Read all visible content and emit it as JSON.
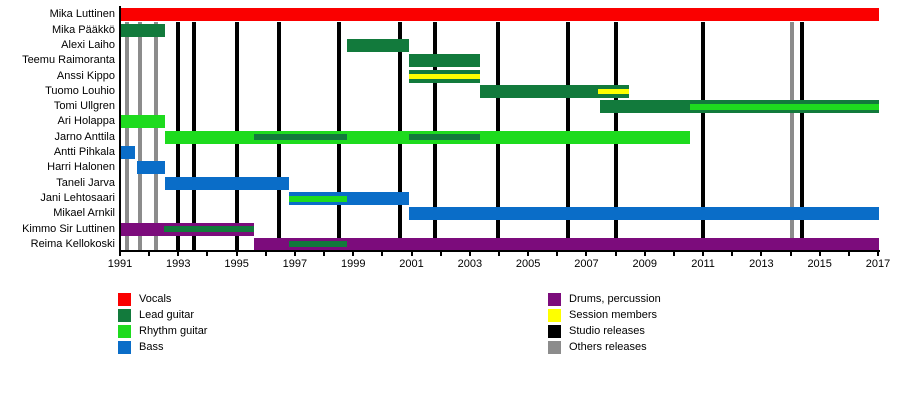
{
  "chart_data": {
    "type": "bar",
    "subtype": "band-member-gantt-timeline",
    "title": "",
    "xlabel": "",
    "ylabel": "",
    "axis": {
      "min_year": 1991,
      "max_year": 2017,
      "tick_every_years": 1,
      "label_every_years": 2,
      "year_labels": [
        1991,
        1993,
        1995,
        1997,
        1999,
        2001,
        2003,
        2005,
        2007,
        2009,
        2011,
        2013,
        2015,
        2017
      ],
      "grid": "vertical release lines only"
    },
    "colors": {
      "vocals": "#fa0000",
      "lead": "#127a3c",
      "rhythm": "#1edb1e",
      "bass": "#0a6dc8",
      "drums": "#7c0c7c",
      "session": "#feff00",
      "studio": "#000000",
      "others": "#8c8c8c"
    },
    "members": [
      {
        "name": "Mika Luttinen",
        "bars": [
          {
            "start": 1991.0,
            "end": 2017.05,
            "role": "vocals",
            "overlays": []
          }
        ]
      },
      {
        "name": "Mika Pääkkö",
        "bars": [
          {
            "start": 1991.0,
            "end": 1992.55,
            "role": "lead",
            "overlays": []
          }
        ]
      },
      {
        "name": "Alexi Laiho",
        "bars": [
          {
            "start": 1998.8,
            "end": 2000.9,
            "role": "lead",
            "overlays": []
          }
        ]
      },
      {
        "name": "Teemu Raimoranta",
        "bars": [
          {
            "start": 2000.9,
            "end": 2003.35,
            "role": "lead",
            "overlays": []
          }
        ]
      },
      {
        "name": "Anssi Kippo",
        "bars": [
          {
            "start": 2000.9,
            "end": 2003.35,
            "role": "lead",
            "overlays": [
              {
                "start": 2000.9,
                "end": 2003.35,
                "role": "session"
              }
            ]
          }
        ]
      },
      {
        "name": "Tuomo Louhio",
        "bars": [
          {
            "start": 2003.35,
            "end": 2008.45,
            "role": "lead",
            "overlays": [
              {
                "start": 2007.4,
                "end": 2008.45,
                "role": "session"
              }
            ]
          }
        ]
      },
      {
        "name": "Tomi Ullgren",
        "bars": [
          {
            "start": 2007.45,
            "end": 2017.05,
            "role": "lead",
            "overlays": [
              {
                "start": 2010.55,
                "end": 2017.05,
                "role": "rhythm"
              }
            ]
          }
        ]
      },
      {
        "name": "Ari Holappa",
        "bars": [
          {
            "start": 1991.0,
            "end": 1992.55,
            "role": "rhythm",
            "overlays": []
          }
        ]
      },
      {
        "name": "Jarno Anttila",
        "bars": [
          {
            "start": 1992.55,
            "end": 2010.55,
            "role": "rhythm",
            "overlays": [
              {
                "start": 1995.6,
                "end": 1998.8,
                "role": "lead"
              },
              {
                "start": 2000.9,
                "end": 2003.35,
                "role": "lead"
              }
            ]
          }
        ]
      },
      {
        "name": "Antti Pihkala",
        "bars": [
          {
            "start": 1991.0,
            "end": 1991.5,
            "role": "bass",
            "overlays": []
          }
        ]
      },
      {
        "name": "Harri Halonen",
        "bars": [
          {
            "start": 1991.6,
            "end": 1992.55,
            "role": "bass",
            "overlays": []
          }
        ]
      },
      {
        "name": "Taneli Jarva",
        "bars": [
          {
            "start": 1992.55,
            "end": 1996.8,
            "role": "bass",
            "overlays": []
          }
        ]
      },
      {
        "name": "Jani Lehtosaari",
        "bars": [
          {
            "start": 1996.8,
            "end": 2000.9,
            "role": "bass",
            "overlays": [
              {
                "start": 1996.8,
                "end": 1998.8,
                "role": "rhythm"
              }
            ]
          }
        ]
      },
      {
        "name": "Mikael Arnkil",
        "bars": [
          {
            "start": 2000.9,
            "end": 2017.05,
            "role": "bass",
            "overlays": []
          }
        ]
      },
      {
        "name": "Kimmo Sir Luttinen",
        "bars": [
          {
            "start": 1991.0,
            "end": 1995.6,
            "role": "drums",
            "overlays": [
              {
                "start": 1992.5,
                "end": 1995.6,
                "role": "lead"
              }
            ]
          }
        ]
      },
      {
        "name": "Reima Kellokoski",
        "bars": [
          {
            "start": 1995.6,
            "end": 2017.05,
            "role": "drums",
            "overlays": [
              {
                "start": 1996.8,
                "end": 1998.8,
                "role": "lead"
              }
            ]
          }
        ]
      }
    ],
    "releases": {
      "studio": [
        1993.0,
        1993.55,
        1995.0,
        1996.45,
        1998.5,
        2000.6,
        2001.8,
        2003.95,
        2006.35,
        2008.0,
        2011.0,
        2014.4
      ],
      "others": [
        1991.25,
        1991.7,
        1992.25,
        2014.05
      ]
    },
    "legend": {
      "position": "bottom, two columns",
      "columns": [
        [
          {
            "label": "Vocals",
            "key": "vocals"
          },
          {
            "label": "Lead guitar",
            "key": "lead"
          },
          {
            "label": "Rhythm guitar",
            "key": "rhythm"
          },
          {
            "label": "Bass",
            "key": "bass"
          }
        ],
        [
          {
            "label": "Drums, percussion",
            "key": "drums"
          },
          {
            "label": "Session members",
            "key": "session"
          },
          {
            "label": "Studio releases",
            "key": "studio"
          },
          {
            "label": "Others releases",
            "key": "others"
          }
        ]
      ]
    }
  }
}
